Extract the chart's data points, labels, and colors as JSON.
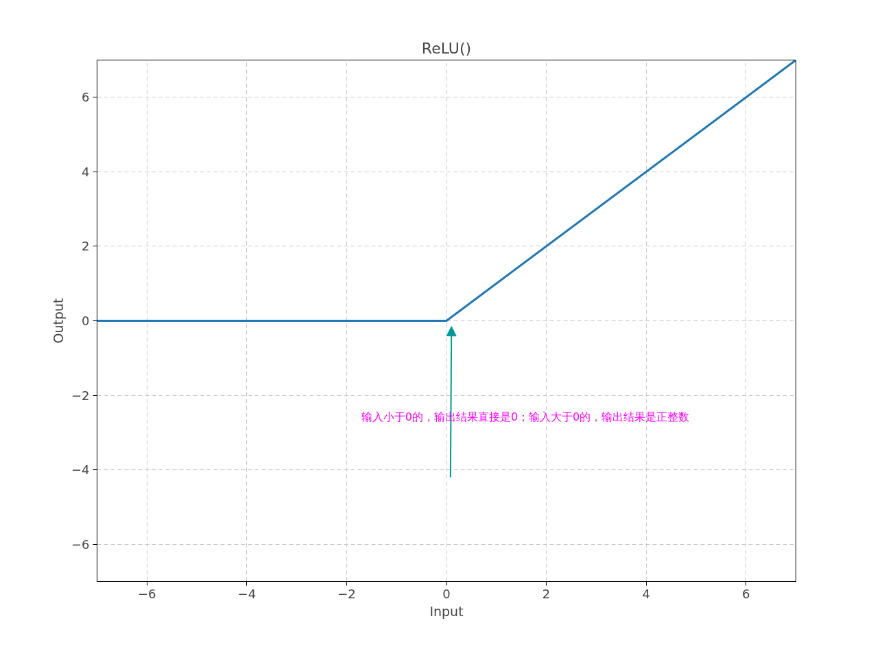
{
  "chart_data": {
    "type": "line",
    "title": "ReLU()",
    "xlabel": "Input",
    "ylabel": "Output",
    "x": [
      -7,
      0,
      7
    ],
    "series": [
      {
        "color": "#1f77b4",
        "values": [
          0,
          0,
          7
        ]
      }
    ],
    "xlim": [
      -7,
      7
    ],
    "ylim": [
      -7,
      7
    ],
    "xticks": [
      {
        "value": -6,
        "label": "−6"
      },
      {
        "value": -4,
        "label": "−4"
      },
      {
        "value": -2,
        "label": "−2"
      },
      0,
      2,
      4,
      6
    ],
    "yticks": [
      {
        "value": -6,
        "label": "−6"
      },
      {
        "value": -4,
        "label": "−4"
      },
      {
        "value": -2,
        "label": "−2"
      },
      0,
      2,
      4,
      6
    ],
    "grid": true,
    "annotations": [
      "输入小于0的，输出结果直接是0；输入大于0的，输出结果是正整数"
    ]
  }
}
